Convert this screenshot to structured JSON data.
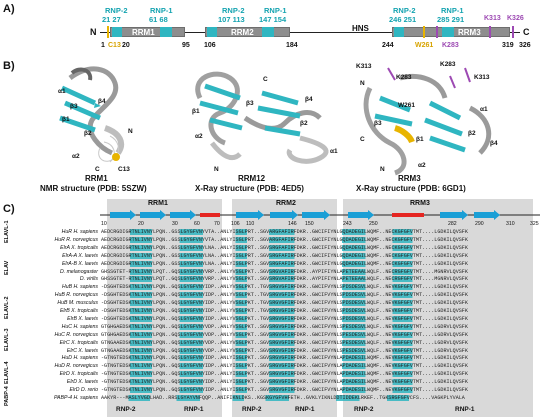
{
  "panel_a": {
    "letter": "A)",
    "n_term": "N",
    "c_term": "C",
    "rrm1": "RRM1",
    "rrm2": "RRM2",
    "rrm3": "RRM3",
    "hns": "HNS",
    "rnp_top": [
      {
        "label": "RNP-2",
        "nums": "21  27"
      },
      {
        "label": "RNP-1",
        "nums": "61  68"
      },
      {
        "label": "RNP-2",
        "nums": "107  113"
      },
      {
        "label": "RNP-1",
        "nums": "147  154"
      },
      {
        "label": "RNP-2",
        "nums": "246  251"
      },
      {
        "label": "RNP-1",
        "nums": "285  291"
      }
    ],
    "k313": "K313",
    "k326": "K326",
    "c13": "C13",
    "w261": "W261",
    "k283": "K283",
    "n1": "1",
    "n20": "20",
    "n95": "95",
    "n106": "106",
    "n184": "184",
    "n244": "244",
    "n319": "319",
    "n326": "326"
  },
  "panel_b": {
    "letter": "B)",
    "s1_title": "RRM1",
    "s1_sub": "NMR structure (PDB: 5SZW)",
    "s2_title": "RRM12",
    "s2_sub": "X-Ray structure (PDB: 4ED5)",
    "s3_title": "RRM3",
    "s3_sub": "X-Ray structure (PDB: 6GD1)",
    "labels": [
      "α1",
      "β1",
      "β3",
      "β2",
      "β4",
      "α2",
      "N",
      "C",
      "C13",
      "C",
      "N",
      "β1",
      "β3",
      "α2",
      "α1",
      "β2",
      "β4",
      "N",
      "K313",
      "K283",
      "K283",
      "K313",
      "W261",
      "β3",
      "β1",
      "β2",
      "α1",
      "α2",
      "β4",
      "N",
      "C"
    ]
  },
  "panel_c": {
    "letter": "C)",
    "ruler": [
      "10",
      "20",
      "30",
      "60",
      "70",
      "106",
      "110",
      "146",
      "150",
      "243",
      "250",
      "282",
      "290",
      "310",
      "325"
    ],
    "domains": [
      "RRM1",
      "RRM2",
      "RRM3"
    ],
    "groups": [
      "ELAVL-1",
      "ELAV",
      "ELAVL-2",
      "ELAVL-3",
      "ELAVL-4",
      "PABP-4"
    ],
    "rows": [
      {
        "sp": "HuR H. sapiens",
        "seq": "AEDCRGDIGRTNLIVNYLPQN..GSSLGYGFVNYVTA..ANLYISGLPRT..SGVARGFAFIRFDKR..GWCIFIYNLGQDADEGILWQMF..NECKGFGFVTMT....LGDKILQVSFK"
      },
      {
        "sp": "HuR R. norvegicus",
        "seq": "AEDCRGDIGRTNLIVNYLPQN..GSSLGYGFVNYVTA..ANLYISGLPRT..SGVARGFAFIRFDKR..GWCIFIYNLGQDADEGILWQMF..NECKGFGFVTMT....LGDKILQVSFK"
      },
      {
        "sp": "ElrA X. tropicalis",
        "seq": "AEDCRGDIGRTNLIVNYLPQN..GSSLGYGFVNYLNA..ANLYISGLPRT..SGVSRGFAFIRFDKR..GWCIFIYNLGQDADEGILWQMF..NECKGFGFVTMT....LGDKILQVSFK"
      },
      {
        "sp": "ElrA-A X. laevis",
        "seq": "AEDCRGDIGRTNLIVNYLPQN..GSSLGYGFVNYLNA..ANLYISGLPRT..SGVSRGFAFIRFDKR..GWCIFIYNLGQDADEGILWQMF..NECKGFGFVTMT....LGDKILQVSFK"
      },
      {
        "sp": "ElrA-B X. laevis",
        "seq": "AEDCRGDIGRTNLIVNYLPQN..GSSLGYGFVNYLNA..ANLYISGLPRT..SGVSRGFAFIRFDKR..GWCIFIYNLGQDADEGILWQMF..NECKGFGFVTMT....LGDKILQVSFK"
      },
      {
        "sp": "D. melanogaster",
        "seq": "GHSSGTET-RTNLIVNYLPQT..GQSLGYGFVNYVRP..ANLYVSGLPKT..SGVSRGVAFIRFDKR..AYPIFIYNLAPETEEAALWQLF..NECRGFGFVTMT....MGNRVLQVSFK"
      },
      {
        "sp": "D. virilis",
        "seq": "GHSSGTET-RTNLIVNYLPQT..GQSLGYGFVNYVRP..ANLYVSGLPKT..SGVSRGVAFIRFDKR..AYPIFIYNLAPETEEAALWQLF..NECRGFGFVTMT....MGNRVLQVSFK"
      },
      {
        "sp": "HuB H. sapiens",
        "seq": "-DSGHTEDSKTNLIVNYLPQN..GQSLGYGFVNYIDP..ANLYVSGLPKT..TGVSRGVGFIRFDKR..GWCIFVYNLSPDSDESVLWQLF..NEVKGFGFVTMT....LGDKILQVSFK"
      },
      {
        "sp": "HuB R. norvegicus",
        "seq": "-DSGHTEDSKTNLIVNYLPQN..GQSLGYGFVNYIDP..ANLYVSGLPKT..TGVSRGVGFIRFDKR..GWCIFVYNLSPDSDESVLWQLF..NEVKGFGFVTMT....LGDKILQVSFK"
      },
      {
        "sp": "HuB M. musculus",
        "seq": "-DSGHTEDSKTNLIVNYLPQN..GQSLGYGFVNYIDP..ANLYVSGLPKT..TGVSRGVGFIRFDKR..GWCIFVYNLSPDSDESVLWQLF..NEVKGFGFVTMT....LGDKILQVSFK"
      },
      {
        "sp": "ElrB X. tropicalis",
        "seq": "-DSGHTEDSKTNLIVNYLPQN..GQSLGYGFVNYIDP..ANLYVSGLPKT..TGVSRGVGFIRFDKR..GWCIFVYNLSPDSDESVLWQLF..NEVKGFGFVTMT....LGDKILQVSFK"
      },
      {
        "sp": "ElrB X. laevis",
        "seq": "-DSGHTEDSKTNLIVNYLPQN..GQSLGYGFVNYIDP..ANLYVSGLPKT..TGVSRGVGFIRFDKR..GWCIFVYNLSPDSDESVLWQLF..NEVKGFGFVTMT....LGDKILQVSFK"
      },
      {
        "sp": "HuC H. sapiens",
        "seq": "GTGHGAEDSKTNLIVNYLPQN..GQSLGYGFVNYVDP..ANLYVSGLPKT..SGVSRGVGFIRFDKR..GWCIFVYNLSPESDESVLWQLF..NEVKGFGFVTMT....LGDRVLQVSFK"
      },
      {
        "sp": "HuC R. norvegicus",
        "seq": "GTGHGAEDSKTNLIVNYLPQN..GQSLGYGFVNYVDP..ANLYVSGLPKT..SGVSRGVGFIRFDKR..GWCIFVYNLSPESDESVLWQLF..NEVKGFGFVTMT....LGDRVLQVSFK"
      },
      {
        "sp": "ElrC X. tropicalis",
        "seq": "GTNGAAEDSKTNLIVNYLPQN..GQSLGYGFVNYVDP..ANLYVSGLPKT..SGVSRGVGFIRFDKR..GWCIFVYNLSPESDESVLWQLF..NEVKGFGFVTMT....LGDRVLQVSFK"
      },
      {
        "sp": "ElrC X. laevis",
        "seq": "GTNGAAEDSKTNLIVNYLPQN..GQSLGYGFVNYVDP..ANLYVSGLPKT..SGVSRGVGFIRFDKR..GWCIFVYNLSPESDESVLWQLF..NEVKGFGFVTMT....LGDRVLQVSFK"
      },
      {
        "sp": "HuD H. sapiens",
        "seq": "-GTNGTEDSKTNLIVNYLPQN..GQSLGYGFVNYIDP..ANLYISGLPKT..SGVSRGVGFIRFDKR..GWCIFVYNLAPDADESILWQMF..NEVKGFGFVTMT....LGDKILQVSFK"
      },
      {
        "sp": "HuD R. norvegicus",
        "seq": "-GTNGTEDSKTNLIVNYLPQN..GQSLGYGFVNYIDP..ANLYISGLPKT..SGVSRGVGFIRFDKR..GWCIFVYNLAPDADESILWQMF..NEVKGFGFVTMT....LGDKILQVSFK"
      },
      {
        "sp": "ElrD X. tropicalis",
        "seq": "-GTNGTEDSKTNLIVNYLPQN..GQSLGYGFVNYIDP..ANLYISGLPKT..SGVSRGVGFIRFDKR..GWCIFVYNLAPDADESILWQMF..NEVKGFGFVTMT....LGDKILQVSFK"
      },
      {
        "sp": "ElrD X. laevis",
        "seq": "-GTNGTEDSKTNLIVNYLPQN..GQSLGYGFVNYIDP..ANLYISGLPKT..SGVSRGVGFIRFDKR..GWCIFVYNLAPDADESILWQMF..NEVKGFGFVTMT....LGDKILQVSFK"
      },
      {
        "sp": "ElrD D. rerio",
        "seq": "-GTNGTEDSKTNLIVNYLPQN..GQSLGYGFVNYIDP..ANLYISGLPKT..SGVSRGVGFIRFDKR..GWCIFVYNLAPDADESILWQMF..NEVKGFGFVTMT....LGDKILQVSFK"
      },
      {
        "sp": "PABP-4 H. sapiens",
        "seq": "AAKYR---MASLYVGDLHAD..RRSLGYAYVNFQQP..ANIFIKNLDKS..KGSKGYGFVHFETH..GVKLYIKNLDDTIDDEKLRKEF..TGKSRGFGFVCFS....VAGKPLYVALA"
      }
    ],
    "bottom": [
      "RNP-2",
      "RNP-1",
      "RNP-2",
      "RNP-1",
      "RNP-2",
      "RNP-1"
    ]
  },
  "colors": {
    "rnp": "#2fb6c1",
    "domain": "#8e8e8e",
    "cys": "#e8b400",
    "lys": "#9d4ab3",
    "helix": "#e52521",
    "strand": "#1a9fd6",
    "band": "#d9d9d9"
  }
}
